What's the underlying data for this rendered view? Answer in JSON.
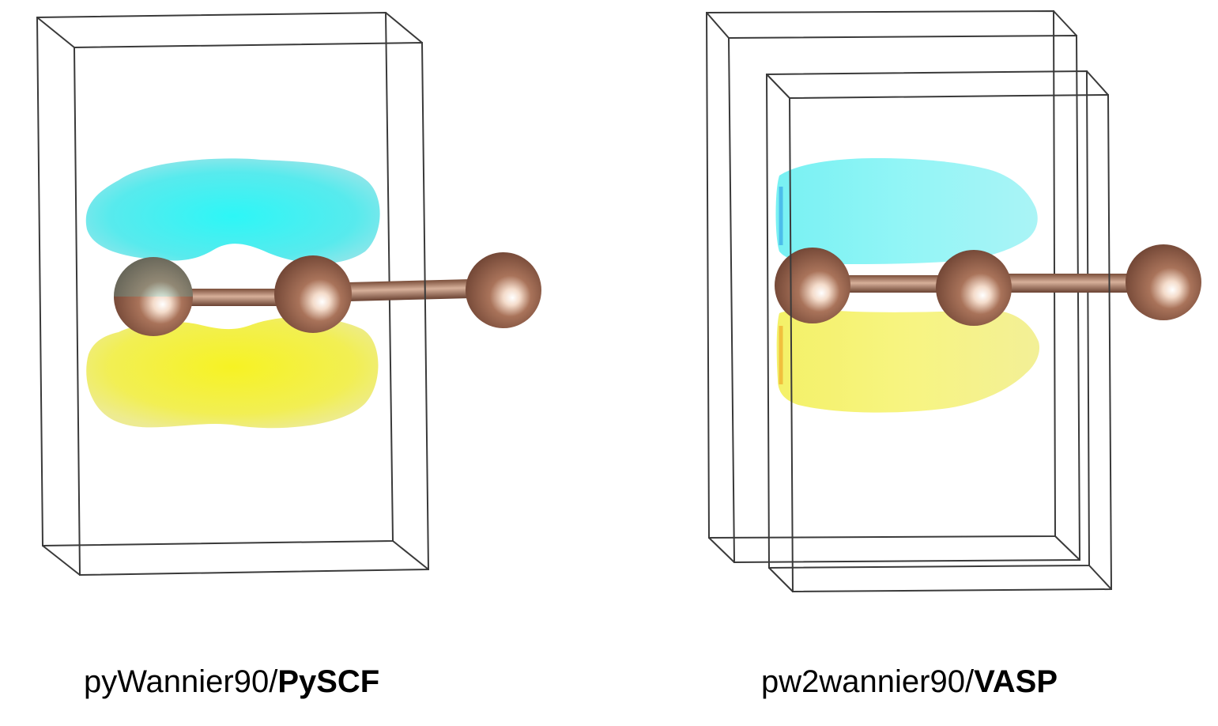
{
  "panels": [
    {
      "caption_code": "pyWannier90/",
      "caption_backend": "PySCF"
    },
    {
      "caption_code": "pw2wannier90/",
      "caption_backend": "VASP"
    }
  ],
  "colors": {
    "lobe_positive": "#2ef2f2",
    "lobe_negative": "#f4f020",
    "atom": "#8a5a42",
    "bond": "#8a5a42",
    "cell_edge": "#444444"
  }
}
